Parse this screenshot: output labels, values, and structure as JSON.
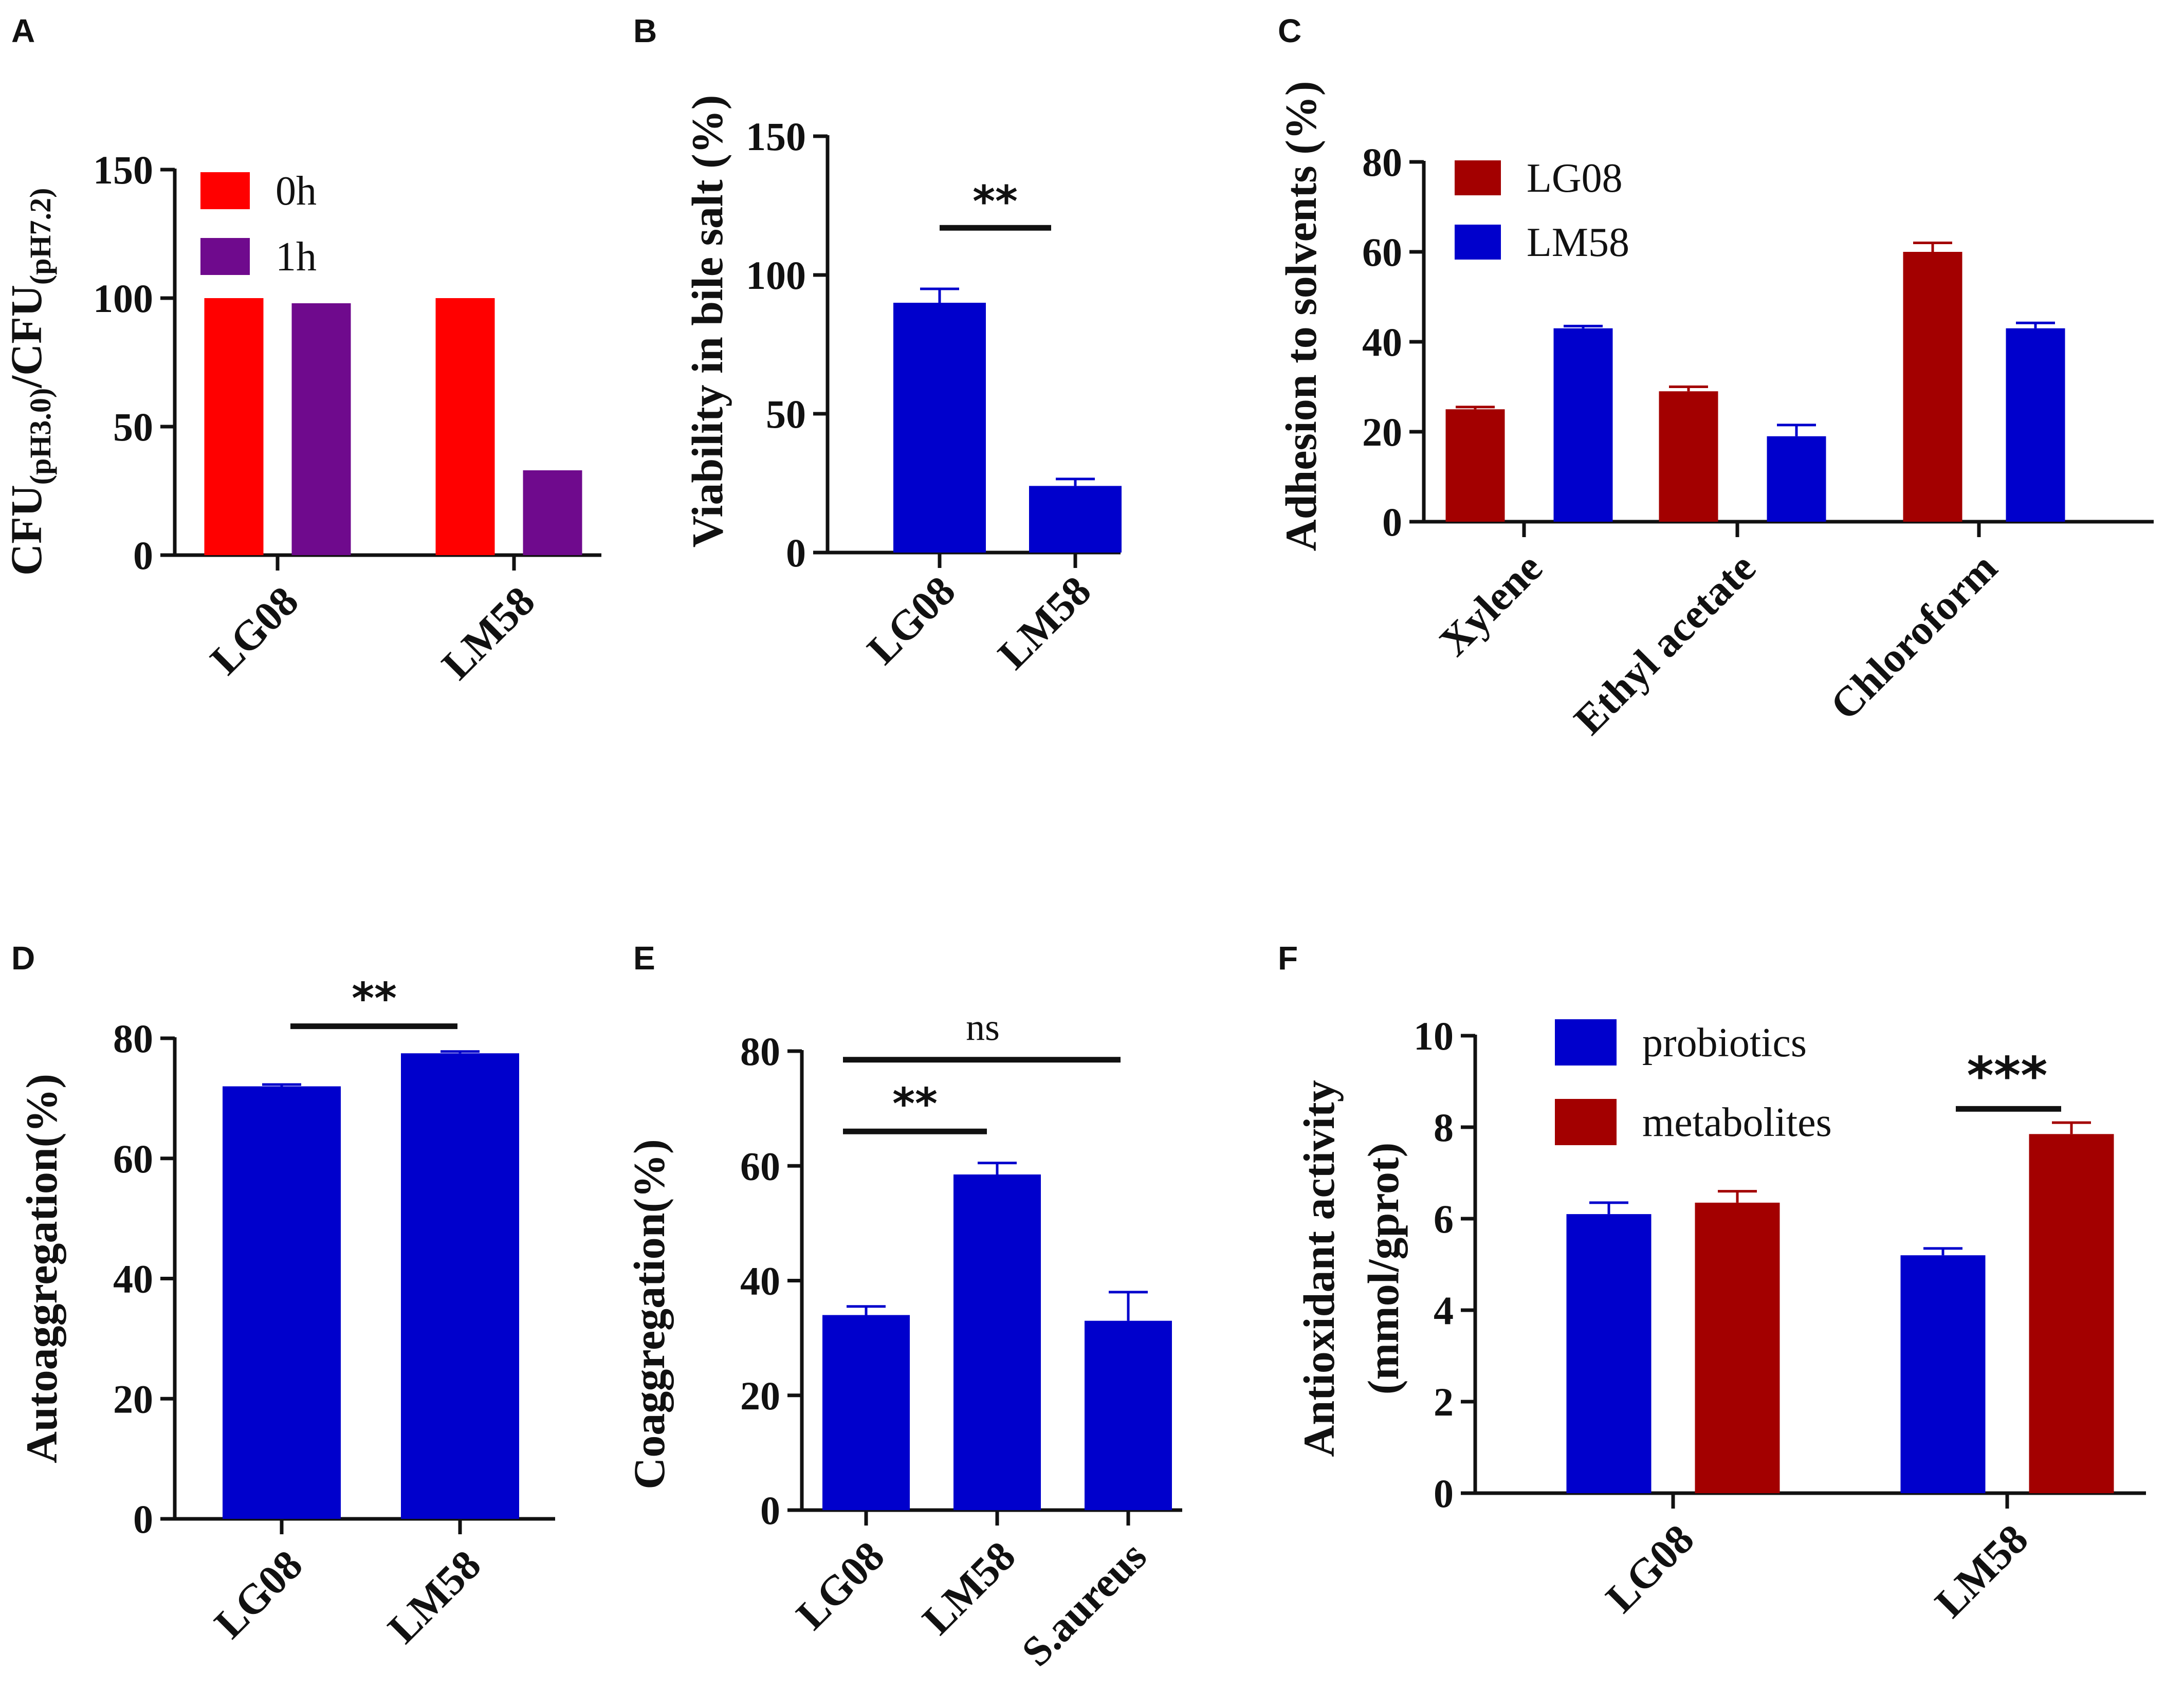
{
  "chart_data": [
    {
      "panel": "A",
      "type": "bar",
      "ylabel_main": "CFU",
      "ylabel_sub1": "(pH3.0)",
      "ylabel_mid": "/CFU",
      "ylabel_sub2": "(pH7.2)",
      "categories": [
        "LG08",
        "LM58"
      ],
      "series": [
        {
          "name": "0h",
          "color": "#ff0000",
          "values": [
            100,
            100
          ],
          "errors": [
            0,
            0
          ]
        },
        {
          "name": "1h",
          "color": "#6f0a8d",
          "values": [
            98,
            33
          ],
          "errors": [
            0,
            0
          ]
        }
      ],
      "ylim": [
        0,
        150
      ],
      "yticks": [
        "0",
        "50",
        "100",
        "150"
      ],
      "legend": "top-left"
    },
    {
      "panel": "B",
      "type": "bar",
      "ylabel": "Viability in bile salt (%)",
      "categories": [
        "LG08",
        "LM58"
      ],
      "series": [
        {
          "name": "",
          "color": "#0000cc",
          "values": [
            90,
            24
          ],
          "errors": [
            5,
            2.5
          ]
        }
      ],
      "ylim": [
        0,
        150
      ],
      "yticks": [
        "0",
        "50",
        "100",
        "150"
      ],
      "significance": [
        {
          "between": [
            "LG08",
            "LM58"
          ],
          "label": "**",
          "y": 117
        }
      ]
    },
    {
      "panel": "C",
      "type": "bar",
      "ylabel": "Adhesion to solvents (%)",
      "categories": [
        "Xylene",
        "Ethyl acetate",
        "Chloroform"
      ],
      "series": [
        {
          "name": "LG08",
          "color": "#a30000",
          "values": [
            25,
            29,
            60
          ],
          "errors": [
            0.5,
            1,
            2
          ]
        },
        {
          "name": "LM58",
          "color": "#0000cc",
          "values": [
            43,
            19,
            43
          ],
          "errors": [
            0.5,
            2.5,
            1.2
          ]
        }
      ],
      "ylim": [
        0,
        80
      ],
      "yticks": [
        "0",
        "20",
        "40",
        "60",
        "80"
      ],
      "legend": "top-left"
    },
    {
      "panel": "D",
      "type": "bar",
      "ylabel": "Autoaggregation(%)",
      "categories": [
        "LG08",
        "LM58"
      ],
      "series": [
        {
          "name": "",
          "color": "#0000cc",
          "values": [
            72,
            77.5
          ],
          "errors": [
            0.3,
            0.3
          ]
        }
      ],
      "ylim": [
        0,
        80
      ],
      "yticks": [
        "0",
        "20",
        "40",
        "60",
        "80"
      ],
      "significance": [
        {
          "between": [
            "LG08",
            "LM58"
          ],
          "label": "**",
          "y": 82
        }
      ]
    },
    {
      "panel": "E",
      "type": "bar",
      "ylabel": "Coaggregation(%)",
      "categories": [
        "LG08",
        "LM58",
        "S.aureus"
      ],
      "series": [
        {
          "name": "",
          "color": "#0000cc",
          "values": [
            34,
            58.5,
            33
          ],
          "errors": [
            1.5,
            2,
            5
          ]
        }
      ],
      "ylim": [
        0,
        80
      ],
      "yticks": [
        "0",
        "20",
        "40",
        "60",
        "80"
      ],
      "significance": [
        {
          "between": [
            "LG08",
            "S.aureus"
          ],
          "label": "ns",
          "y": 78.5
        },
        {
          "between": [
            "LG08",
            "LM58"
          ],
          "label": "**",
          "y": 66
        }
      ]
    },
    {
      "panel": "F",
      "type": "bar",
      "ylabel_line1": "Antioxidant activity",
      "ylabel_line2": "(mmol/gprot)",
      "categories": [
        "LG08",
        "LM58"
      ],
      "series": [
        {
          "name": "probiotics",
          "color": "#0000cc",
          "values": [
            6.1,
            5.2
          ],
          "errors": [
            0.25,
            0.15
          ]
        },
        {
          "name": "metabolites",
          "color": "#a30000",
          "values": [
            6.35,
            7.85
          ],
          "errors": [
            0.25,
            0.25
          ]
        }
      ],
      "ylim": [
        0,
        10
      ],
      "yticks": [
        "0",
        "2",
        "4",
        "6",
        "8",
        "10"
      ],
      "legend": "top-left",
      "significance": [
        {
          "between": [
            "LM58-probiotics",
            "LM58-metabolites"
          ],
          "label": "***",
          "y": 8.4
        }
      ]
    }
  ]
}
